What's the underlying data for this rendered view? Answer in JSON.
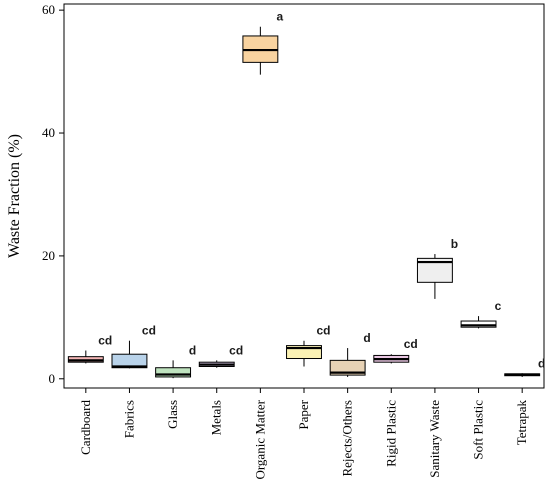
{
  "chart_data": {
    "type": "boxplot",
    "ylabel": "Waste Fraction (%)",
    "xlabel": "",
    "ylim": [
      -1.5,
      61
    ],
    "yticks": [
      0,
      20,
      40,
      60
    ],
    "grid": false,
    "legend": "none",
    "categories": [
      "Cardboard",
      "Fabrics",
      "Glass",
      "Metals",
      "Organic Matter",
      "Paper",
      "Rejects/Others",
      "Rigid Plastic",
      "Sanitary Waste",
      "Soft Plastic",
      "Tetrapak"
    ],
    "boxes": [
      {
        "min": 2.5,
        "q1": 2.7,
        "median": 3.0,
        "q3": 3.6,
        "max": 4.6,
        "letter": "cd",
        "color": "#f4b6b6"
      },
      {
        "min": 1.7,
        "q1": 1.8,
        "median": 2.0,
        "q3": 4.0,
        "max": 6.2,
        "letter": "cd",
        "color": "#b9d3ea"
      },
      {
        "min": 0.1,
        "q1": 0.3,
        "median": 0.7,
        "q3": 1.8,
        "max": 3.0,
        "letter": "d",
        "color": "#bfe3bf"
      },
      {
        "min": 1.8,
        "q1": 2.0,
        "median": 2.3,
        "q3": 2.7,
        "max": 3.0,
        "letter": "cd",
        "color": "#d8c8e8"
      },
      {
        "min": 49.5,
        "q1": 51.5,
        "median": 53.5,
        "q3": 55.8,
        "max": 57.3,
        "letter": "a",
        "color": "#f8d3a0"
      },
      {
        "min": 2.0,
        "q1": 3.3,
        "median": 5.0,
        "q3": 5.4,
        "max": 6.2,
        "letter": "cd",
        "color": "#fbf2b5"
      },
      {
        "min": 0.3,
        "q1": 0.6,
        "median": 1.0,
        "q3": 3.0,
        "max": 5.0,
        "letter": "d",
        "color": "#e7d2b5"
      },
      {
        "min": 2.5,
        "q1": 2.7,
        "median": 3.2,
        "q3": 3.8,
        "max": 4.0,
        "letter": "cd",
        "color": "#ebc8e4"
      },
      {
        "min": 13.0,
        "q1": 15.7,
        "median": 19.0,
        "q3": 19.6,
        "max": 20.3,
        "letter": "b",
        "color": "#efefef"
      },
      {
        "min": 8.2,
        "q1": 8.4,
        "median": 8.7,
        "q3": 9.4,
        "max": 10.2,
        "letter": "c",
        "color": "#ffffff"
      },
      {
        "min": 0.3,
        "q1": 0.5,
        "median": 0.7,
        "q3": 0.8,
        "max": 0.9,
        "letter": "d",
        "color": "#f2d8d8"
      }
    ]
  }
}
